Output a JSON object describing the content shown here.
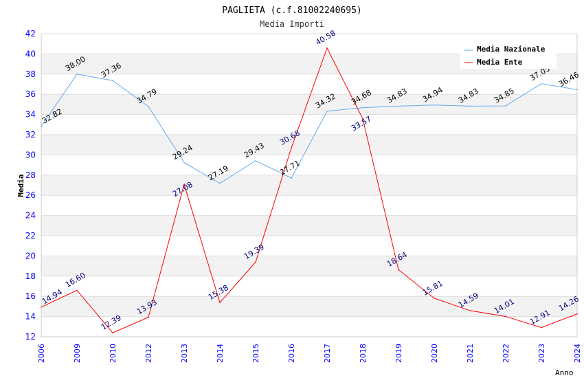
{
  "chart_data": {
    "type": "line",
    "title": "PAGLIETA (c.f.81002240695)",
    "subtitle": "Media Importi",
    "xlabel": "Anno",
    "ylabel": "Media",
    "ylim": [
      12,
      42
    ],
    "yticks": [
      12,
      14,
      16,
      18,
      20,
      22,
      24,
      26,
      28,
      30,
      32,
      34,
      36,
      38,
      40,
      42
    ],
    "x": [
      "2006",
      "2009",
      "2010",
      "2012",
      "2013",
      "2014",
      "2015",
      "2016",
      "2017",
      "2018",
      "2019",
      "2020",
      "2021",
      "2022",
      "2023",
      "2024"
    ],
    "legend_position": "top-right",
    "series": [
      {
        "name": "Media Nazionale",
        "color": "#66aaee",
        "label_color": "#000000",
        "values": [
          32.82,
          38.0,
          37.36,
          34.79,
          29.24,
          27.19,
          29.43,
          27.71,
          34.32,
          34.68,
          34.83,
          34.94,
          34.83,
          34.85,
          37.05,
          36.46
        ]
      },
      {
        "name": "Media Ente",
        "color": "#ff0000",
        "label_color": "#000080",
        "values": [
          14.94,
          16.6,
          12.39,
          13.93,
          27.08,
          15.38,
          19.39,
          30.68,
          40.58,
          33.57,
          18.64,
          15.81,
          14.59,
          14.01,
          12.91,
          14.26
        ]
      }
    ]
  }
}
